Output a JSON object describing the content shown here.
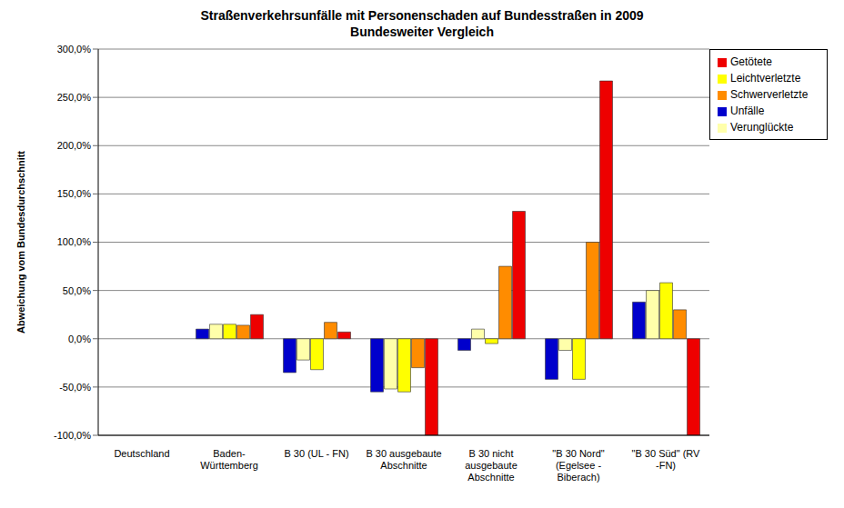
{
  "chart_data": {
    "type": "bar",
    "title": "Straßenverkehrsunfälle mit Personenschaden auf Bundesstraßen in 2009",
    "subtitle": "Bundesweiter Vergleich",
    "y_label": "Abweichung vom Bundesdurchschnitt",
    "categories": [
      "Deutschland",
      "Baden-Württemberg",
      "B 30 (UL - FN)",
      "B 30 ausgebaute Abschnitte",
      "B 30 nicht ausgebaute Abschnitte",
      "\"B 30 Nord\" (Egelsee - Biberach)",
      "\"B 30 Süd\" (RV - FN)"
    ],
    "series": [
      {
        "name": "Unfälle",
        "color": "#0000cc",
        "values": [
          0,
          10,
          -35,
          -55,
          -12,
          -42,
          38
        ]
      },
      {
        "name": "Verunglückte",
        "color": "#ffffaa",
        "values": [
          0,
          15,
          -22,
          -52,
          10,
          -12,
          50
        ]
      },
      {
        "name": "Leichtverletzte",
        "color": "#ffff00",
        "values": [
          0,
          15,
          -32,
          -55,
          -5,
          -42,
          58
        ]
      },
      {
        "name": "Schwerverletzte",
        "color": "#ff8c00",
        "values": [
          0,
          14,
          17,
          -30,
          75,
          100,
          30
        ]
      },
      {
        "name": "Getötete",
        "color": "#ee0000",
        "values": [
          0,
          25,
          7,
          -100,
          132,
          267,
          -100
        ]
      }
    ],
    "ylim": [
      -100,
      300
    ],
    "yticks": [
      {
        "value": -100,
        "label": "-100,0%"
      },
      {
        "value": -50,
        "label": "-50,0%"
      },
      {
        "value": 0,
        "label": "0,0%"
      },
      {
        "value": 50,
        "label": "50,0%"
      },
      {
        "value": 100,
        "label": "100,0%"
      },
      {
        "value": 150,
        "label": "150,0%"
      },
      {
        "value": 200,
        "label": "200,0%"
      },
      {
        "value": 250,
        "label": "250,0%"
      },
      {
        "value": 300,
        "label": "300,0%"
      }
    ],
    "grid": true,
    "legend": "upper right"
  }
}
